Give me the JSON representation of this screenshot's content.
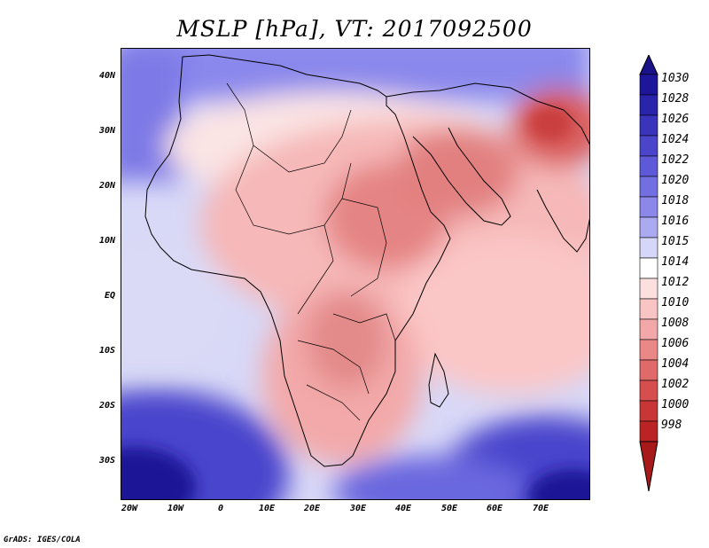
{
  "title": "MSLP [hPa], VT: 2017092500",
  "axes": {
    "lat_labels": [
      "40N",
      "30N",
      "20N",
      "10N",
      "EQ",
      "10S",
      "20S",
      "30S"
    ],
    "lon_labels": [
      "20W",
      "10W",
      "0",
      "10E",
      "20E",
      "30E",
      "40E",
      "50E",
      "60E",
      "70E"
    ]
  },
  "colorbar": {
    "levels": [
      "1030",
      "1028",
      "1026",
      "1024",
      "1022",
      "1020",
      "1018",
      "1016",
      "1015",
      "1014",
      "1012",
      "1010",
      "1008",
      "1006",
      "1004",
      "1002",
      "1000",
      "998"
    ],
    "colors": {
      "deep_blue": "#1a129a",
      "mid_blue": "#6d6ae6",
      "light_blue": "#d6d6f8",
      "white": "#ffffff",
      "light_red": "#fbc8c8",
      "mid_red": "#e57b7b",
      "deep_red": "#b81c1c"
    }
  },
  "footer": "GrADS: IGES/COLA"
}
